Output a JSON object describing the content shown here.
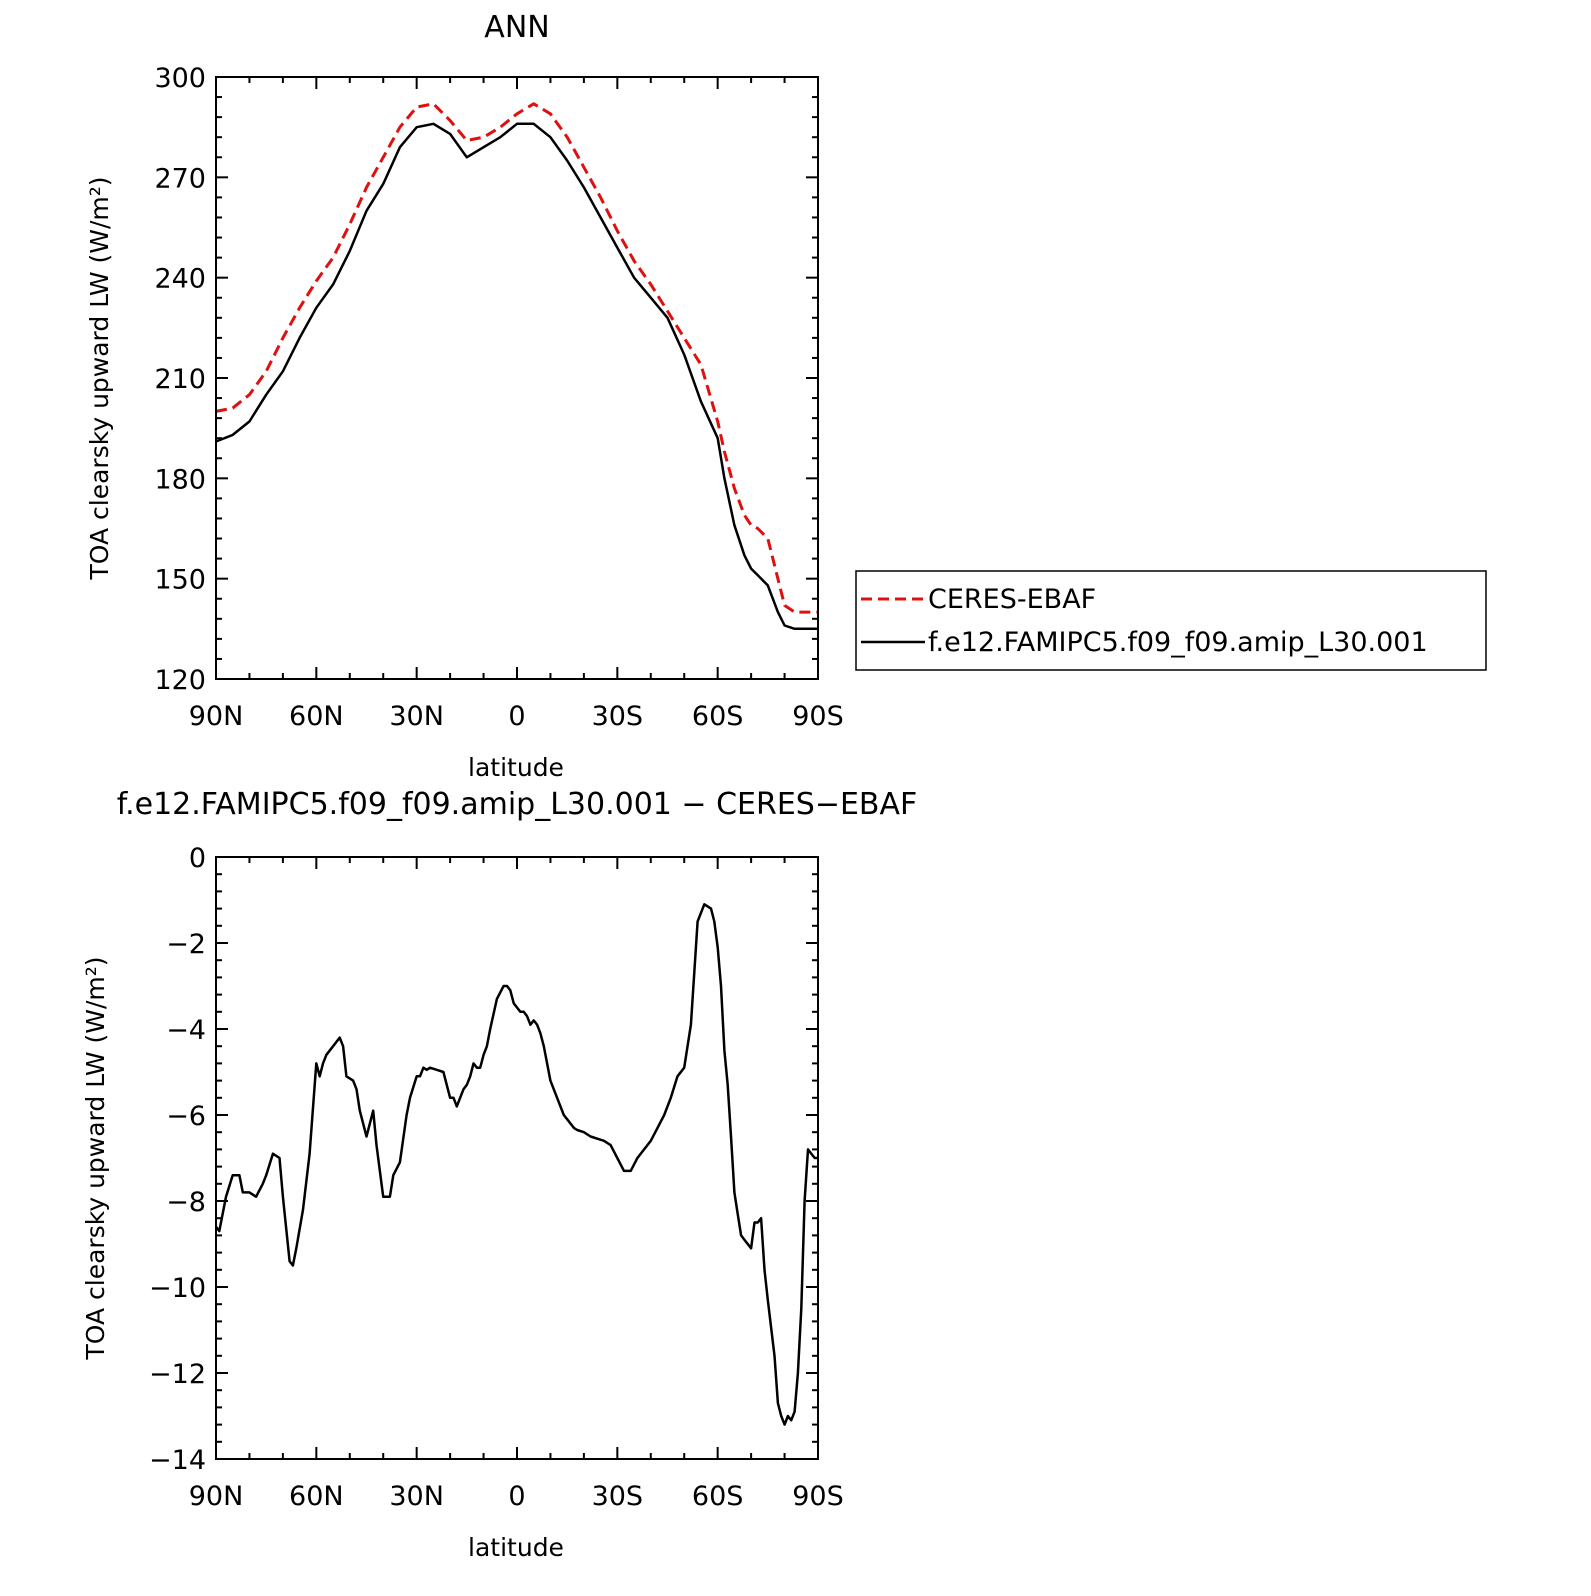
{
  "chart_data": [
    {
      "type": "line",
      "title": "ANN",
      "xlabel": "latitude",
      "ylabel": "TOA clearsky upward LW (W/m²)",
      "xticks": [
        "90N",
        "60N",
        "30N",
        "0",
        "30S",
        "60S",
        "90S"
      ],
      "xlim": [
        90,
        -90
      ],
      "ylim": [
        120,
        300
      ],
      "yticks": [
        120,
        150,
        180,
        210,
        240,
        270,
        300
      ],
      "legend": "right",
      "series": [
        {
          "name": "CERES-EBAF",
          "color": "#e01010",
          "dash": "dashed",
          "x": [
            90,
            85,
            80,
            75,
            70,
            65,
            60,
            55,
            50,
            45,
            40,
            35,
            30,
            25,
            20,
            15,
            10,
            5,
            0,
            -5,
            -10,
            -15,
            -20,
            -25,
            -30,
            -35,
            -40,
            -45,
            -50,
            -55,
            -60,
            -62,
            -65,
            -68,
            -70,
            -72,
            -75,
            -78,
            -80,
            -83,
            -85,
            -87,
            -90
          ],
          "y": [
            200,
            201,
            205,
            212,
            222,
            231,
            239,
            246,
            256,
            267,
            276,
            285,
            291,
            292,
            287,
            281,
            282,
            285,
            289,
            292,
            289,
            282,
            273,
            264,
            254,
            245,
            238,
            230,
            222,
            214,
            197,
            188,
            177,
            169,
            166,
            165,
            162,
            150,
            142,
            140,
            140,
            140,
            140
          ]
        },
        {
          "name": "f.e12.FAMIPC5.f09_f09.amip_L30.001",
          "color": "#000000",
          "dash": "solid",
          "x": [
            90,
            85,
            80,
            75,
            70,
            65,
            60,
            55,
            50,
            45,
            40,
            35,
            30,
            25,
            20,
            15,
            10,
            5,
            0,
            -5,
            -10,
            -15,
            -20,
            -25,
            -30,
            -35,
            -40,
            -45,
            -50,
            -55,
            -60,
            -62,
            -65,
            -68,
            -70,
            -72,
            -75,
            -78,
            -80,
            -83,
            -85,
            -87,
            -90
          ],
          "y": [
            191,
            193,
            197,
            205,
            212,
            222,
            231,
            238,
            248,
            260,
            268,
            279,
            285,
            286,
            283,
            276,
            279,
            282,
            286,
            286,
            282,
            275,
            267,
            258,
            249,
            240,
            234,
            228,
            217,
            203,
            192,
            180,
            166,
            157,
            153,
            151,
            148,
            140,
            136,
            135,
            135,
            135,
            135
          ]
        }
      ]
    },
    {
      "type": "line",
      "title": "f.e12.FAMIPC5.f09_f09.amip_L30.001 − CERES−EBAF",
      "xlabel": "latitude",
      "ylabel": "TOA clearsky upward LW (W/m²)",
      "xticks": [
        "90N",
        "60N",
        "30N",
        "0",
        "30S",
        "60S",
        "90S"
      ],
      "xlim": [
        90,
        -90
      ],
      "ylim": [
        -14,
        0
      ],
      "yticks": [
        -14,
        -12,
        -10,
        -8,
        -6,
        -4,
        -2,
        0
      ],
      "series": [
        {
          "color": "#000000",
          "dash": "solid",
          "x": [
            90,
            89,
            87,
            85,
            83,
            82,
            80,
            78,
            76,
            75,
            73,
            71,
            70,
            68,
            67,
            66,
            64,
            62,
            60,
            59,
            58,
            57,
            55,
            53,
            52,
            51,
            49,
            48,
            47,
            45,
            43,
            42,
            40,
            38,
            37,
            35,
            33,
            32,
            30,
            29,
            28,
            27,
            26,
            24,
            22,
            20,
            19,
            18,
            16,
            15,
            14,
            13,
            12,
            11,
            10,
            9,
            8,
            6,
            4,
            3,
            2,
            1,
            0,
            -1,
            -2,
            -3,
            -4,
            -5,
            -6,
            -7,
            -8,
            -9,
            -10,
            -12,
            -14,
            -15,
            -17,
            -18,
            -20,
            -22,
            -24,
            -26,
            -28,
            -30,
            -32,
            -34,
            -36,
            -38,
            -40,
            -42,
            -44,
            -46,
            -48,
            -50,
            -52,
            -54,
            -56,
            -58,
            -59,
            -60,
            -61,
            -62,
            -63,
            -64,
            -65,
            -66,
            -67,
            -68,
            -70,
            -71,
            -72,
            -73,
            -74,
            -75,
            -77,
            -78,
            -79,
            -80,
            -81,
            -82,
            -83,
            -84,
            -85,
            -86,
            -87,
            -88,
            -89,
            -90
          ],
          "y": [
            -8.6,
            -8.7,
            -7.9,
            -7.4,
            -7.4,
            -7.8,
            -7.8,
            -7.9,
            -7.6,
            -7.4,
            -6.9,
            -7.0,
            -7.9,
            -9.4,
            -9.5,
            -9.1,
            -8.2,
            -6.9,
            -4.8,
            -5.1,
            -4.8,
            -4.6,
            -4.4,
            -4.2,
            -4.4,
            -5.1,
            -5.2,
            -5.4,
            -5.9,
            -6.5,
            -5.9,
            -6.7,
            -7.9,
            -7.9,
            -7.4,
            -7.1,
            -6.0,
            -5.6,
            -5.1,
            -5.1,
            -4.9,
            -4.95,
            -4.9,
            -4.95,
            -5.0,
            -5.6,
            -5.6,
            -5.8,
            -5.4,
            -5.3,
            -5.1,
            -4.8,
            -4.9,
            -4.9,
            -4.6,
            -4.4,
            -4.0,
            -3.3,
            -3.0,
            -3.0,
            -3.1,
            -3.4,
            -3.5,
            -3.6,
            -3.6,
            -3.7,
            -3.9,
            -3.8,
            -3.9,
            -4.1,
            -4.4,
            -4.8,
            -5.2,
            -5.6,
            -6.0,
            -6.1,
            -6.3,
            -6.35,
            -6.4,
            -6.5,
            -6.55,
            -6.6,
            -6.7,
            -7.0,
            -7.3,
            -7.3,
            -7.0,
            -6.8,
            -6.6,
            -6.3,
            -6.0,
            -5.6,
            -5.1,
            -4.9,
            -3.9,
            -1.5,
            -1.1,
            -1.2,
            -1.5,
            -2.1,
            -3.0,
            -4.5,
            -5.3,
            -6.5,
            -7.8,
            -8.3,
            -8.8,
            -8.9,
            -9.1,
            -8.5,
            -8.5,
            -8.4,
            -9.6,
            -10.3,
            -11.6,
            -12.7,
            -13.0,
            -13.2,
            -13.0,
            -13.1,
            -12.9,
            -12.0,
            -10.5,
            -8.0,
            -6.8,
            -6.9,
            -7.0,
            -7.0
          ]
        }
      ]
    }
  ]
}
